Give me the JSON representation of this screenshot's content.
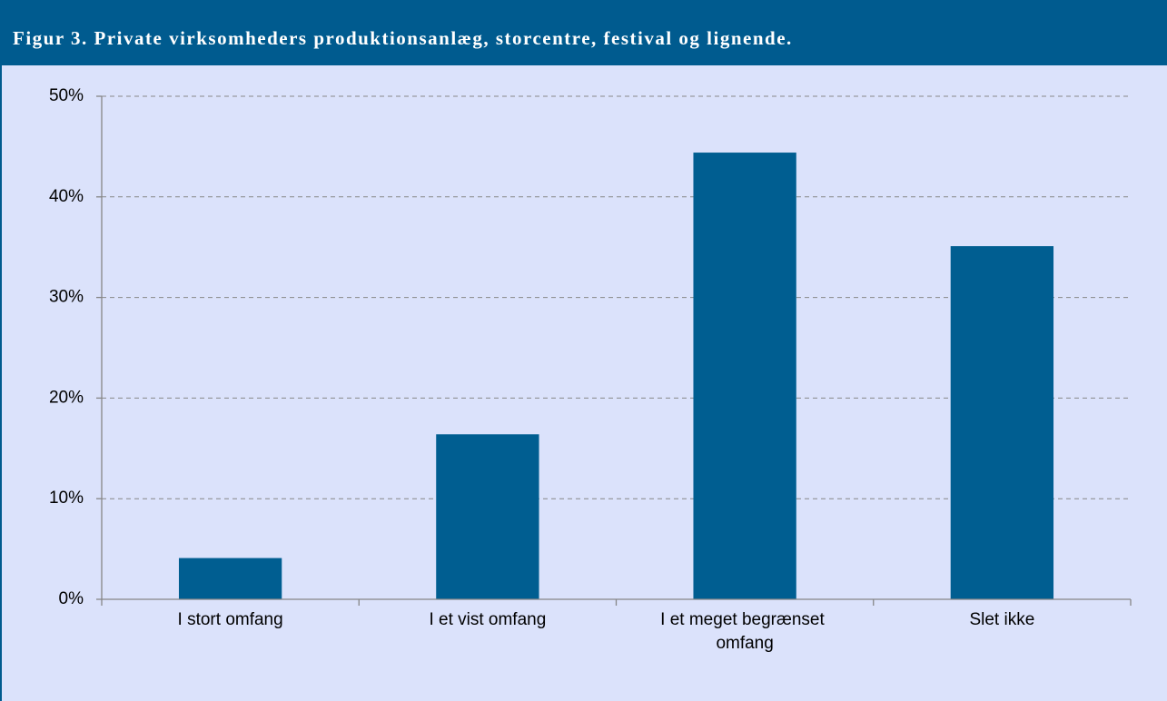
{
  "chart_data": {
    "type": "bar",
    "title": "Figur 3. Private virksomheders produktionsanlæg, storcentre, festival og lignende.",
    "categories": [
      "I stort omfang",
      "I et vist omfang",
      "I et meget begrænset omfang",
      "Slet ikke"
    ],
    "values": [
      4.1,
      16.4,
      44.4,
      35.1
    ],
    "color": "#005e91",
    "ylim": [
      0,
      50
    ],
    "yticks": [
      {
        "value": 0,
        "label": "0%"
      },
      {
        "value": 10,
        "label": "10%"
      },
      {
        "value": 20,
        "label": "20%"
      },
      {
        "value": 30,
        "label": "30%"
      },
      {
        "value": 40,
        "label": "40%"
      },
      {
        "value": 50,
        "label": "50%"
      }
    ],
    "grid": true
  }
}
